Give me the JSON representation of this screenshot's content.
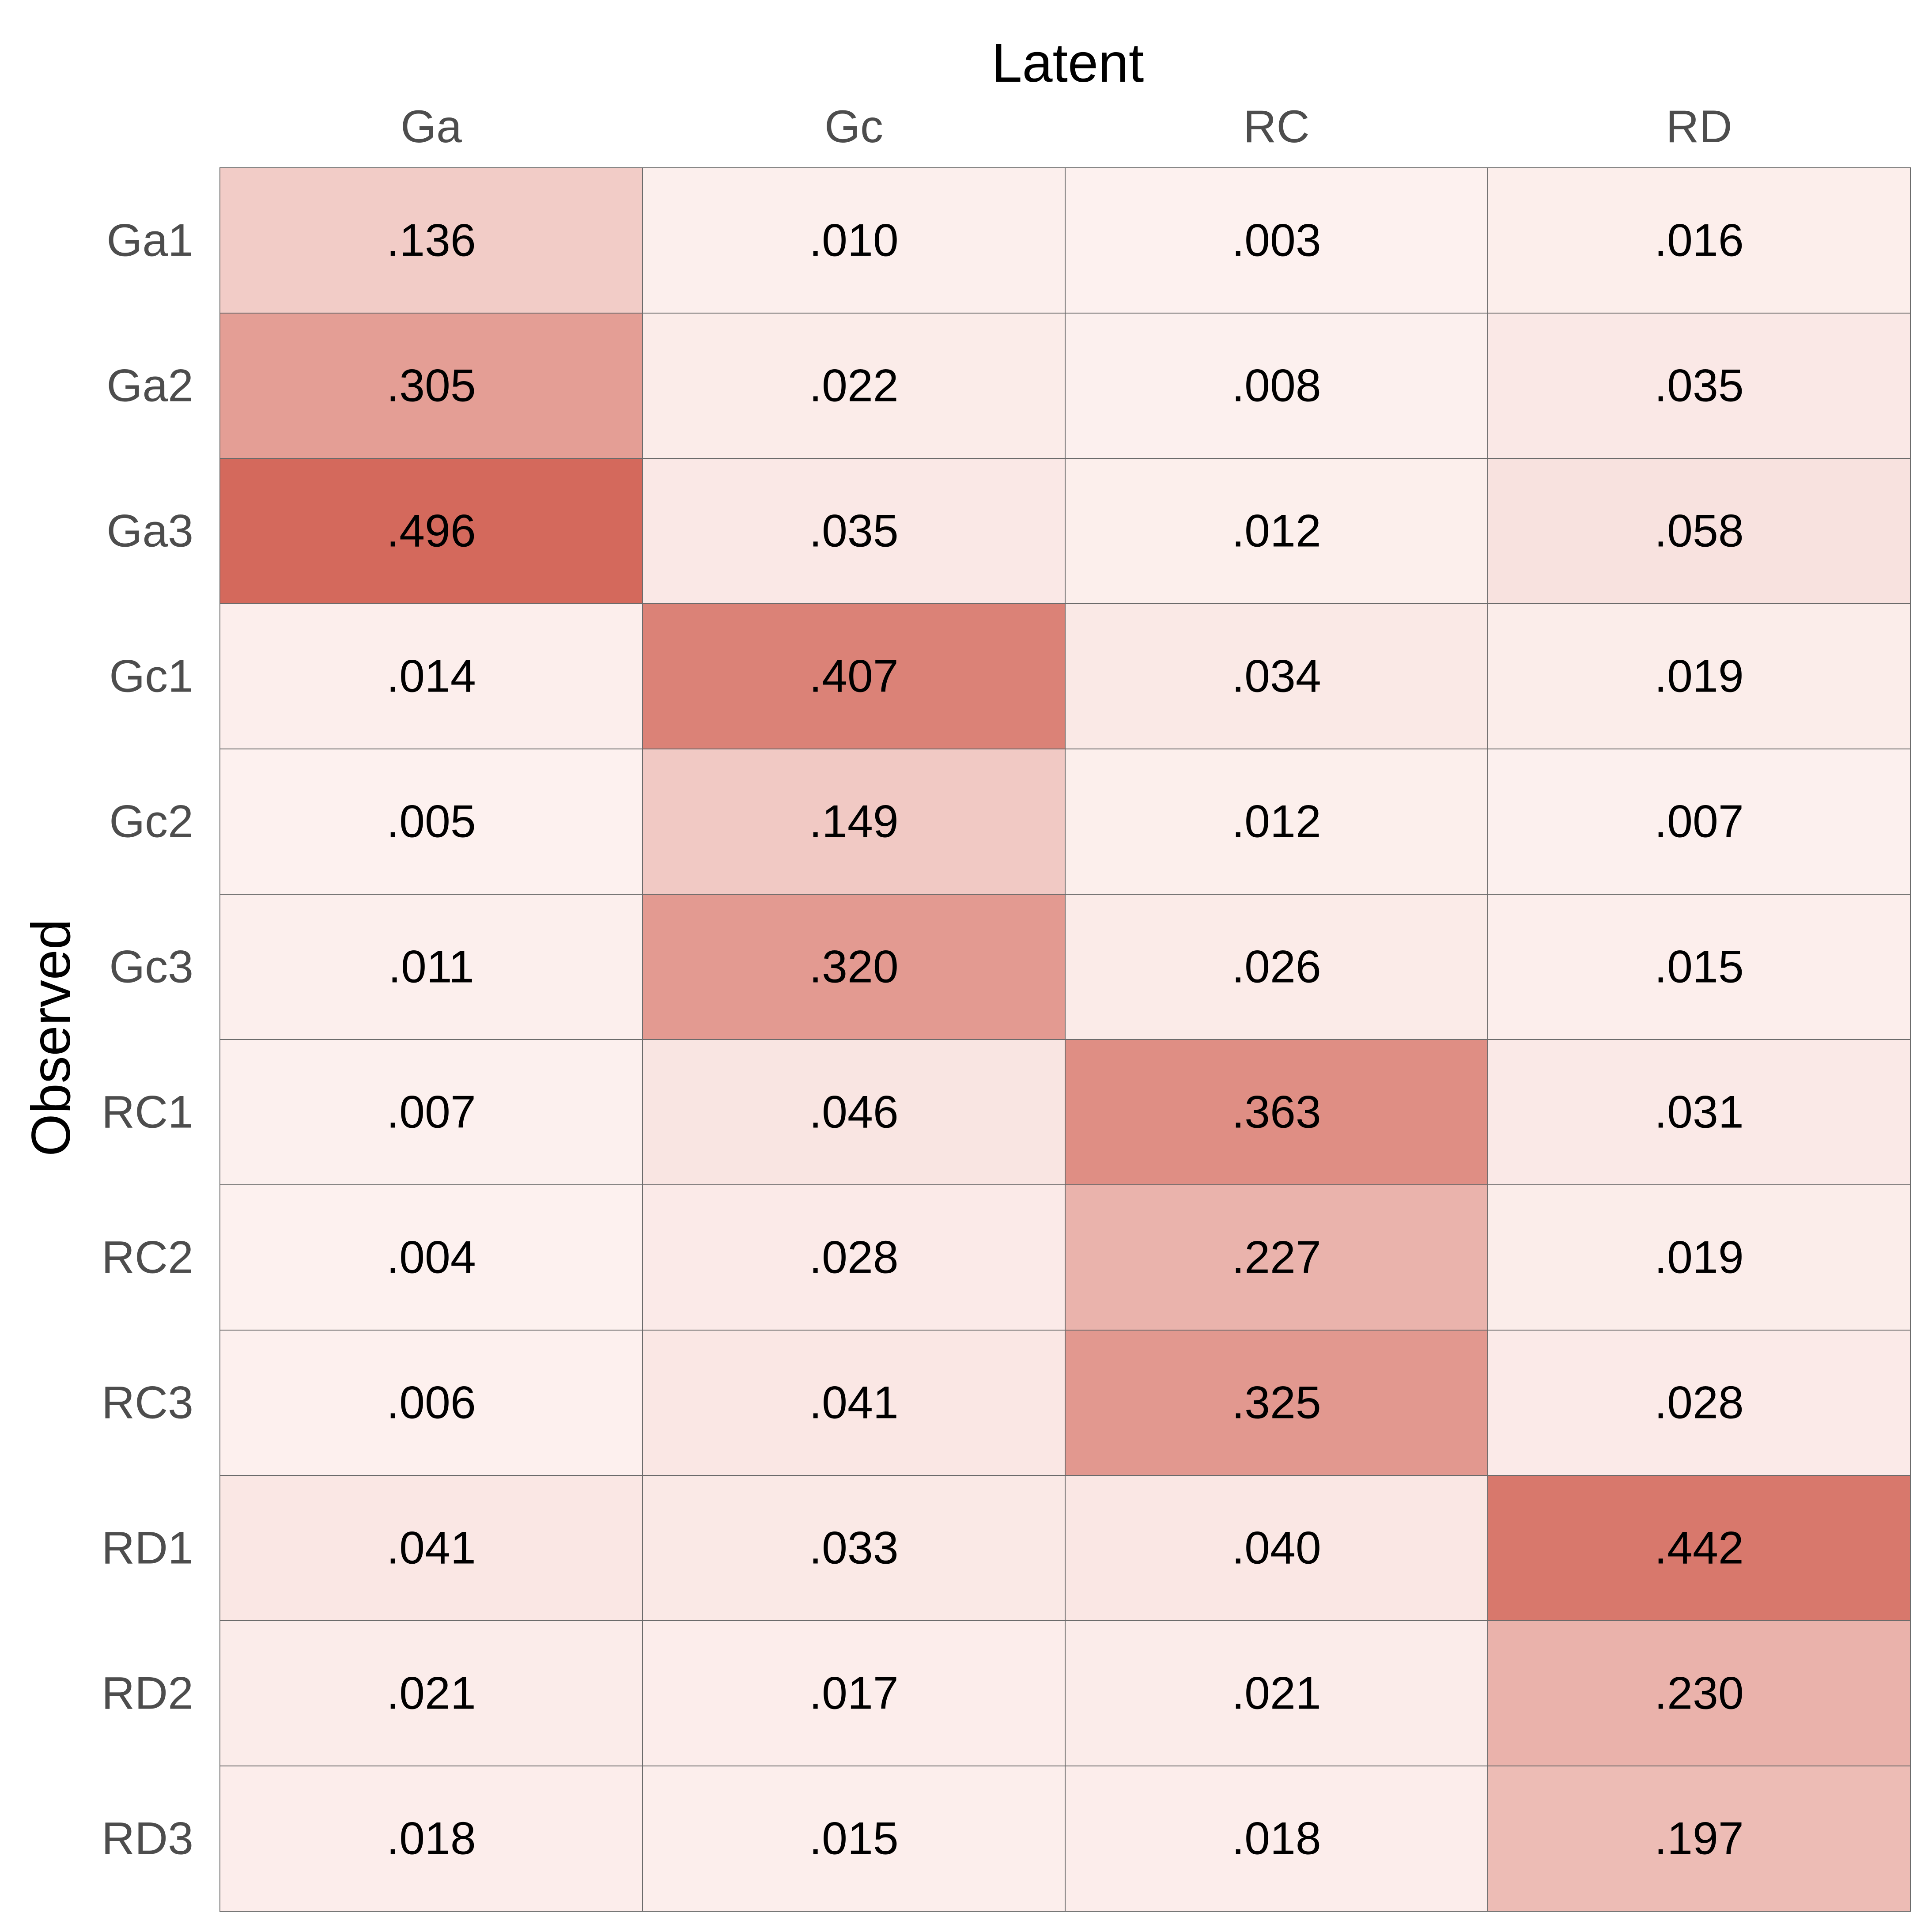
{
  "chart_data": {
    "type": "heatmap",
    "xlabel": "Latent",
    "ylabel": "Observed",
    "columns": [
      "Ga",
      "Gc",
      "RC",
      "RD"
    ],
    "rows": [
      "Ga1",
      "Ga2",
      "Ga3",
      "Gc1",
      "Gc2",
      "Gc3",
      "RC1",
      "RC2",
      "RC3",
      "RD1",
      "RD2",
      "RD3"
    ],
    "values": [
      [
        0.136,
        0.01,
        0.003,
        0.016
      ],
      [
        0.305,
        0.022,
        0.008,
        0.035
      ],
      [
        0.496,
        0.035,
        0.012,
        0.058
      ],
      [
        0.014,
        0.407,
        0.034,
        0.019
      ],
      [
        0.005,
        0.149,
        0.012,
        0.007
      ],
      [
        0.011,
        0.32,
        0.026,
        0.015
      ],
      [
        0.007,
        0.046,
        0.363,
        0.031
      ],
      [
        0.004,
        0.028,
        0.227,
        0.019
      ],
      [
        0.006,
        0.041,
        0.325,
        0.028
      ],
      [
        0.041,
        0.033,
        0.04,
        0.442
      ],
      [
        0.021,
        0.017,
        0.021,
        0.23
      ],
      [
        0.018,
        0.015,
        0.018,
        0.197
      ]
    ],
    "labels": [
      [
        ".136",
        ".010",
        ".003",
        ".016"
      ],
      [
        ".305",
        ".022",
        ".008",
        ".035"
      ],
      [
        ".496",
        ".035",
        ".012",
        ".058"
      ],
      [
        ".014",
        ".407",
        ".034",
        ".019"
      ],
      [
        ".005",
        ".149",
        ".012",
        ".007"
      ],
      [
        ".011",
        ".320",
        ".026",
        ".015"
      ],
      [
        ".007",
        ".046",
        ".363",
        ".031"
      ],
      [
        ".004",
        ".028",
        ".227",
        ".019"
      ],
      [
        ".006",
        ".041",
        ".325",
        ".028"
      ],
      [
        ".041",
        ".033",
        ".040",
        ".442"
      ],
      [
        ".021",
        ".017",
        ".021",
        ".230"
      ],
      [
        ".018",
        ".015",
        ".018",
        ".197"
      ]
    ],
    "color_low": "#fdf2f0",
    "color_high": "#d4695c",
    "x_axis_position": "top",
    "legend": "none",
    "grid": false
  }
}
